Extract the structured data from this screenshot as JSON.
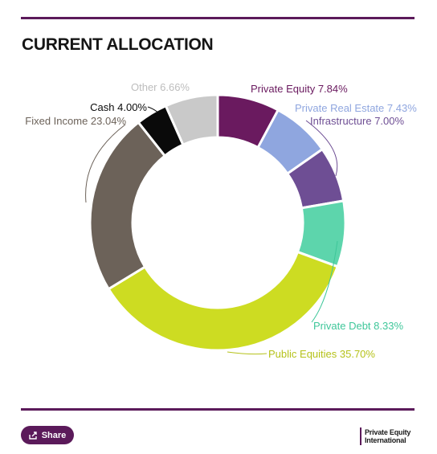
{
  "header": {
    "title": "CURRENT ALLOCATION"
  },
  "chart_data": {
    "type": "pie",
    "donut": true,
    "title": "CURRENT ALLOCATION",
    "slices": [
      {
        "label": "Private Equity",
        "value": 7.84,
        "display": "Private Equity 7.84%",
        "color": "#6a1a5f",
        "label_color": "#6a1a5f"
      },
      {
        "label": "Private Real Estate",
        "value": 7.43,
        "display": "Private Real Estate 7.43%",
        "color": "#8fa6df",
        "label_color": "#8fa6df"
      },
      {
        "label": "Infrastructure",
        "value": 7.0,
        "display": "Infrastructure 7.00%",
        "color": "#6e4e94",
        "label_color": "#6e4e94"
      },
      {
        "label": "Private Debt",
        "value": 8.33,
        "display": "Private Debt 8.33%",
        "color": "#5dd5ac",
        "label_color": "#3fc79a"
      },
      {
        "label": "Public Equities",
        "value": 35.7,
        "display": "Public Equities 35.70%",
        "color": "#cddc22",
        "label_color": "#b5c21a"
      },
      {
        "label": "Fixed Income",
        "value": 23.04,
        "display": "Fixed Income 23.04%",
        "color": "#6c6259",
        "label_color": "#6c6259"
      },
      {
        "label": "Cash",
        "value": 4.0,
        "display": "Cash 4.00%",
        "color": "#0a0a0a",
        "label_color": "#0a0a0a"
      },
      {
        "label": "Other",
        "value": 6.66,
        "display": "Other 6.66%",
        "color": "#c9c9c9",
        "label_color": "#bdbdbd"
      }
    ],
    "legend": "none"
  },
  "footer": {
    "share_label": "Share",
    "share_icon": "share-icon",
    "brand_line1": "Private Equity",
    "brand_line2": "International",
    "brand_color": "#5b1a5a"
  }
}
